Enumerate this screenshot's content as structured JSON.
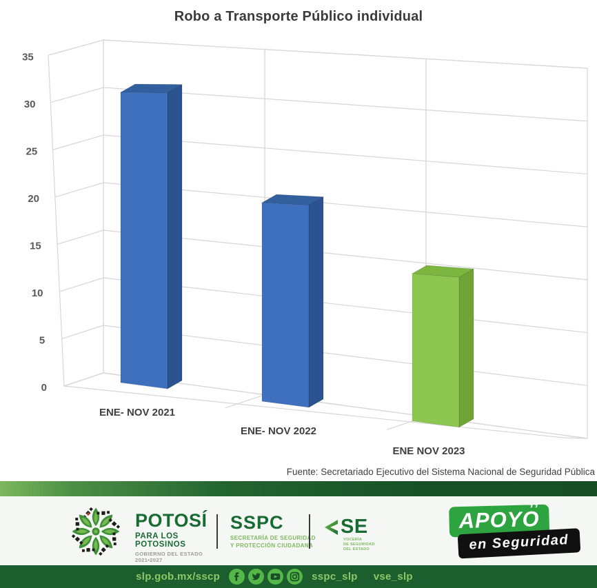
{
  "title": "Robo a Transporte Público individual",
  "source": "Fuente: Secretariado Ejecutivo del Sistema Nacional de Seguridad Pública",
  "chart_data": {
    "type": "bar",
    "style": "3d-column",
    "title": "Robo a Transporte Público individual",
    "categories": [
      "ENE- NOV 2021",
      "ENE- NOV 2022",
      "ENE NOV 2023"
    ],
    "values": [
      31,
      20,
      14
    ],
    "series": [
      {
        "name": "Robo a Transporte Público individual",
        "values": [
          31,
          20,
          14
        ]
      }
    ],
    "ylim": [
      0,
      35
    ],
    "yticks": [
      0,
      5,
      10,
      15,
      20,
      25,
      30,
      35
    ],
    "grid": true,
    "legend": false,
    "bar_colors": [
      "#3F70BE",
      "#3F70BE",
      "#8DC751"
    ],
    "bar_faces": [
      {
        "front": "#3F70BE",
        "top": "#32609F",
        "side": "#2A5390"
      },
      {
        "front": "#3F70BE",
        "top": "#32609F",
        "side": "#2A5390"
      },
      {
        "front": "#8DC751",
        "top": "#7CB53F",
        "side": "#6FA436"
      }
    ],
    "tick_color": "#595959",
    "category_color": "#3f3f3f",
    "grid_color": "#d6d6d6"
  },
  "footer": {
    "potosi": {
      "name": "POTOSÍ",
      "tagline": "PARA LOS POTOSINOS",
      "subtitle": "GOBIERNO DEL ESTADO 2021•2027"
    },
    "sspc": {
      "name": "SSPC",
      "subtitle1": "SECRETARÍA DE SEGURIDAD",
      "subtitle2": "Y PROTECCIÓN CIUDADANA"
    },
    "se": {
      "name": "SE",
      "subtitle1": "VOCERÍA",
      "subtitle2": "DE SEGURIDAD",
      "subtitle3": "DEL ESTADO"
    },
    "apoyo": {
      "word": "APOYO",
      "marks": "ʼʼ",
      "tagline": "en Seguridad"
    },
    "bar": {
      "url": "slp.gob.mx/sscp",
      "handle1": "sspc_slp",
      "handle2": "vse_slp"
    }
  },
  "colors": {
    "accent_green_dark": "#176B33",
    "accent_green_light": "#7CB95C",
    "footer_bar_bg": "#1C5E2D",
    "badge_green": "#2EA440",
    "icon_circle": "#54B748"
  }
}
